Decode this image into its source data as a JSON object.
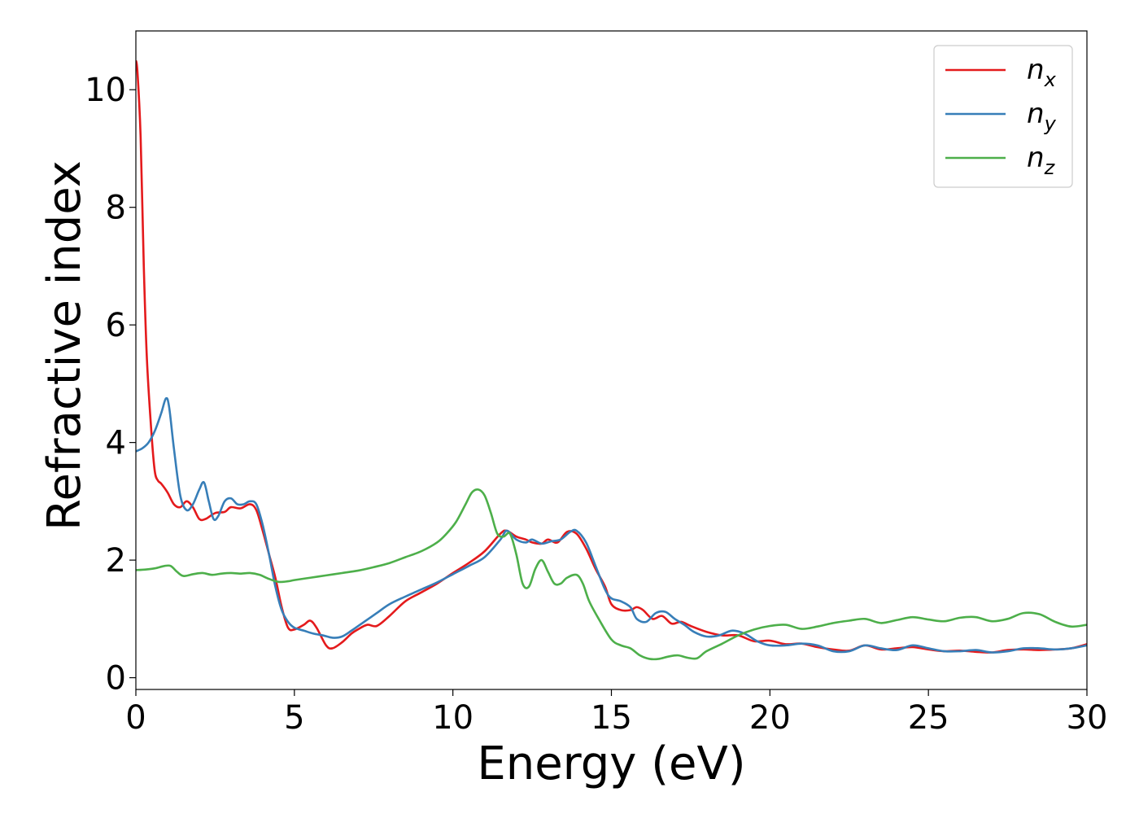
{
  "chart_data": {
    "type": "line",
    "title": "",
    "xlabel": "Energy (eV)",
    "ylabel": "Refractive index",
    "xlim": [
      0,
      30
    ],
    "ylim": [
      -0.2,
      11.0
    ],
    "xticks": [
      0,
      5,
      10,
      15,
      20,
      25,
      30
    ],
    "yticks": [
      0,
      2,
      4,
      6,
      8,
      10
    ],
    "grid": false,
    "legend_position": "top-right",
    "series": [
      {
        "name": "n",
        "subscript": "x",
        "color": "#e41a1c",
        "x": [
          0,
          0.05,
          0.15,
          0.25,
          0.35,
          0.5,
          0.6,
          0.7,
          0.8,
          1.0,
          1.2,
          1.4,
          1.6,
          1.8,
          2.0,
          2.2,
          2.5,
          2.8,
          3.0,
          3.3,
          3.6,
          3.8,
          4.0,
          4.2,
          4.4,
          4.6,
          4.8,
          5.0,
          5.3,
          5.5,
          5.7,
          6.0,
          6.2,
          6.5,
          6.8,
          7.0,
          7.3,
          7.6,
          8.0,
          8.5,
          9.0,
          9.5,
          10.0,
          10.5,
          11.0,
          11.5,
          11.7,
          12.0,
          12.3,
          12.5,
          12.8,
          13.0,
          13.3,
          13.6,
          13.9,
          14.2,
          14.5,
          14.8,
          15.0,
          15.3,
          15.6,
          15.8,
          16.0,
          16.3,
          16.6,
          16.9,
          17.2,
          17.5,
          18.0,
          18.5,
          19.0,
          19.5,
          20.0,
          20.5,
          21.0,
          21.5,
          22.0,
          22.5,
          23.0,
          23.5,
          24.0,
          24.5,
          25.0,
          25.5,
          26.0,
          26.5,
          27.0,
          27.5,
          28.0,
          28.5,
          29.0,
          29.5,
          30.0
        ],
        "values": [
          10.5,
          10.3,
          9.2,
          7.0,
          5.4,
          4.1,
          3.5,
          3.35,
          3.3,
          3.15,
          2.95,
          2.9,
          3.0,
          2.9,
          2.7,
          2.7,
          2.8,
          2.82,
          2.9,
          2.88,
          2.95,
          2.85,
          2.5,
          2.1,
          1.7,
          1.2,
          0.85,
          0.82,
          0.9,
          0.97,
          0.85,
          0.55,
          0.5,
          0.6,
          0.75,
          0.82,
          0.9,
          0.88,
          1.05,
          1.3,
          1.45,
          1.6,
          1.78,
          1.95,
          2.15,
          2.45,
          2.5,
          2.4,
          2.35,
          2.3,
          2.28,
          2.35,
          2.3,
          2.48,
          2.45,
          2.2,
          1.85,
          1.55,
          1.25,
          1.15,
          1.15,
          1.2,
          1.15,
          1.0,
          1.05,
          0.92,
          0.95,
          0.88,
          0.78,
          0.72,
          0.72,
          0.62,
          0.63,
          0.57,
          0.58,
          0.52,
          0.48,
          0.46,
          0.55,
          0.48,
          0.5,
          0.52,
          0.48,
          0.45,
          0.46,
          0.44,
          0.43,
          0.47,
          0.48,
          0.47,
          0.48,
          0.5,
          0.57
        ]
      },
      {
        "name": "n",
        "subscript": "y",
        "color": "#377eb8",
        "x": [
          0,
          0.2,
          0.4,
          0.6,
          0.8,
          0.95,
          1.05,
          1.2,
          1.4,
          1.6,
          1.8,
          2.0,
          2.15,
          2.3,
          2.45,
          2.6,
          2.8,
          3.0,
          3.2,
          3.4,
          3.6,
          3.8,
          4.0,
          4.2,
          4.4,
          4.6,
          4.8,
          5.0,
          5.3,
          5.6,
          5.9,
          6.2,
          6.5,
          6.8,
          7.2,
          7.6,
          8.0,
          8.5,
          9.0,
          9.5,
          10.0,
          10.5,
          11.0,
          11.5,
          11.7,
          12.0,
          12.3,
          12.5,
          12.8,
          13.1,
          13.4,
          13.7,
          13.9,
          14.2,
          14.5,
          14.8,
          15.0,
          15.3,
          15.6,
          15.8,
          16.1,
          16.4,
          16.7,
          17.0,
          17.3,
          17.6,
          18.0,
          18.4,
          18.8,
          19.2,
          19.6,
          20.0,
          20.5,
          21.0,
          21.5,
          22.0,
          22.5,
          23.0,
          23.5,
          24.0,
          24.5,
          25.0,
          25.5,
          26.0,
          26.5,
          27.0,
          27.5,
          28.0,
          28.5,
          29.0,
          29.5,
          30.0
        ],
        "values": [
          3.85,
          3.9,
          4.0,
          4.2,
          4.5,
          4.75,
          4.6,
          3.9,
          3.1,
          2.85,
          2.95,
          3.2,
          3.32,
          3.0,
          2.7,
          2.75,
          3.0,
          3.05,
          2.95,
          2.95,
          3.0,
          2.95,
          2.6,
          2.1,
          1.55,
          1.15,
          0.95,
          0.85,
          0.8,
          0.75,
          0.72,
          0.68,
          0.7,
          0.8,
          0.95,
          1.1,
          1.25,
          1.38,
          1.5,
          1.62,
          1.76,
          1.9,
          2.05,
          2.35,
          2.5,
          2.35,
          2.3,
          2.35,
          2.28,
          2.32,
          2.35,
          2.48,
          2.5,
          2.3,
          1.9,
          1.5,
          1.35,
          1.3,
          1.2,
          1.0,
          0.95,
          1.1,
          1.12,
          1.0,
          0.9,
          0.78,
          0.7,
          0.72,
          0.8,
          0.75,
          0.62,
          0.55,
          0.55,
          0.58,
          0.55,
          0.45,
          0.45,
          0.55,
          0.5,
          0.47,
          0.55,
          0.5,
          0.45,
          0.45,
          0.47,
          0.43,
          0.45,
          0.5,
          0.5,
          0.48,
          0.5,
          0.55
        ]
      },
      {
        "name": "n",
        "subscript": "z",
        "color": "#4daf4a",
        "x": [
          0,
          0.3,
          0.6,
          0.9,
          1.1,
          1.3,
          1.5,
          1.8,
          2.1,
          2.4,
          2.7,
          3.0,
          3.3,
          3.6,
          3.9,
          4.2,
          4.5,
          4.8,
          5.0,
          5.5,
          6.0,
          6.5,
          7.0,
          7.5,
          8.0,
          8.5,
          9.0,
          9.5,
          9.8,
          10.1,
          10.4,
          10.6,
          10.8,
          11.0,
          11.2,
          11.4,
          11.6,
          11.8,
          12.0,
          12.2,
          12.4,
          12.6,
          12.8,
          13.0,
          13.2,
          13.4,
          13.6,
          13.9,
          14.1,
          14.3,
          14.6,
          15.0,
          15.3,
          15.6,
          15.9,
          16.2,
          16.5,
          16.8,
          17.1,
          17.4,
          17.7,
          18.0,
          18.5,
          19.0,
          19.5,
          20.0,
          20.5,
          21.0,
          21.5,
          22.0,
          22.5,
          23.0,
          23.5,
          24.0,
          24.5,
          25.0,
          25.5,
          26.0,
          26.5,
          27.0,
          27.5,
          28.0,
          28.5,
          29.0,
          29.5,
          30.0
        ],
        "values": [
          1.83,
          1.84,
          1.86,
          1.9,
          1.9,
          1.8,
          1.73,
          1.76,
          1.78,
          1.75,
          1.77,
          1.78,
          1.77,
          1.78,
          1.75,
          1.68,
          1.63,
          1.64,
          1.66,
          1.7,
          1.74,
          1.78,
          1.82,
          1.88,
          1.95,
          2.05,
          2.15,
          2.3,
          2.45,
          2.65,
          2.95,
          3.15,
          3.2,
          3.1,
          2.8,
          2.45,
          2.4,
          2.45,
          2.1,
          1.6,
          1.55,
          1.85,
          2.0,
          1.8,
          1.6,
          1.6,
          1.7,
          1.75,
          1.6,
          1.3,
          1.0,
          0.65,
          0.55,
          0.5,
          0.38,
          0.32,
          0.32,
          0.36,
          0.38,
          0.34,
          0.33,
          0.45,
          0.58,
          0.72,
          0.82,
          0.88,
          0.9,
          0.83,
          0.87,
          0.93,
          0.97,
          1.0,
          0.93,
          0.98,
          1.03,
          0.99,
          0.96,
          1.02,
          1.03,
          0.96,
          1.0,
          1.1,
          1.08,
          0.95,
          0.87,
          0.9
        ]
      }
    ]
  }
}
